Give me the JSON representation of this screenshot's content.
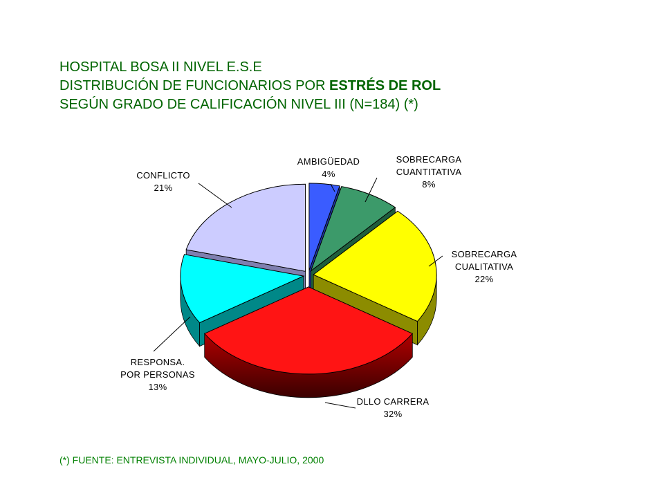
{
  "title": {
    "line1": "HOSPITAL BOSA II NIVEL E.S.E",
    "line2_prefix": "DISTRIBUCIÓN DE FUNCIONARIOS POR ",
    "line2_bold": "ESTRÉS DE ROL",
    "line3": "SEGÚN GRADO DE CALIFICACIÓN NIVEL III   (N=184) (*)"
  },
  "footnote": "(*) FUENTE: ENTREVISTA INDIVIDUAL, MAYO-JULIO, 2000",
  "colors": {
    "title": "#006400",
    "footnote": "#008000"
  },
  "chart_data": {
    "type": "pie",
    "style": "3d-exploded",
    "slices": [
      {
        "label_lines": [
          "AMBIGÜEDAD"
        ],
        "percent_label": "4%",
        "value": 4,
        "color": "#3a5cff"
      },
      {
        "label_lines": [
          "SOBRECARGA",
          "CUANTITATIVA"
        ],
        "percent_label": "8%",
        "value": 8,
        "color": "#3c9a6a"
      },
      {
        "label_lines": [
          "SOBRECARGA",
          "CUALITATIVA"
        ],
        "percent_label": "22%",
        "value": 22,
        "color": "#ffff00"
      },
      {
        "label_lines": [
          "DLLO CARRERA"
        ],
        "percent_label": "32%",
        "value": 32,
        "color": "#ff1414"
      },
      {
        "label_lines": [
          "RESPONSA.",
          "POR PERSONAS"
        ],
        "percent_label": "13%",
        "value": 13,
        "color": "#00ffff"
      },
      {
        "label_lines": [
          "CONFLICTO"
        ],
        "percent_label": "21%",
        "value": 21,
        "color": "#ccccff"
      }
    ]
  }
}
